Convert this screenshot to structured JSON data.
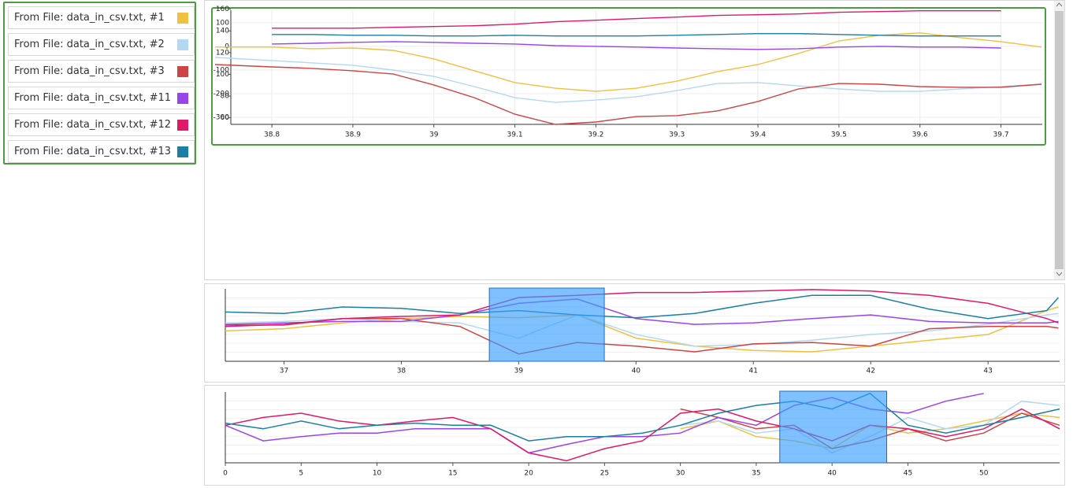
{
  "chart_data": [
    {
      "type": "line",
      "grid": true,
      "x": [
        38.73,
        38.8,
        38.85,
        38.9,
        38.95,
        39,
        39.05,
        39.1,
        39.15,
        39.2,
        39.25,
        39.3,
        39.35,
        39.4,
        39.45,
        39.5,
        39.55,
        39.6,
        39.65,
        39.7,
        39.75
      ],
      "xlim": [
        38.727,
        39.751
      ],
      "xticks": [
        38.8,
        38.9,
        39,
        39.1,
        39.2,
        39.3,
        39.4,
        39.5,
        39.6,
        39.7
      ],
      "ylim": [
        -330,
        153
      ],
      "yticks": [
        -300,
        -200,
        -100,
        0,
        100
      ],
      "y2lim": [
        54,
        159
      ],
      "y2ticks": [
        60,
        80,
        100,
        120,
        140,
        160
      ],
      "series": [
        {
          "name": "From File: data_in_csv.txt, #1",
          "color": "#f0c040",
          "values": [
            -3,
            -3,
            -10,
            -7,
            -17,
            -53,
            -103,
            -153,
            -177,
            -190,
            -177,
            -147,
            -107,
            -77,
            -30,
            23,
            47,
            57,
            37,
            20,
            -3
          ]
        },
        {
          "name": "From File: data_in_csv.txt, #2",
          "color": "#b3d9f2",
          "values": [
            -47,
            -60,
            -70,
            -80,
            -100,
            -127,
            -170,
            -217,
            -237,
            -227,
            -213,
            -187,
            -157,
            -153,
            -167,
            -180,
            -190,
            -190,
            -180,
            -170,
            -160
          ]
        },
        {
          "name": "From File: data_in_csv.txt, #3",
          "color": "#cc4444",
          "values": [
            -77,
            -87,
            -93,
            -103,
            -117,
            -163,
            -217,
            -287,
            -330,
            -320,
            -297,
            -293,
            -273,
            -233,
            -180,
            -157,
            -160,
            -170,
            -173,
            -173,
            -160
          ]
        },
        {
          "name": "From File: data_in_csv.txt, #11",
          "color": "#9b45e8",
          "values": [
            null,
            10,
            13,
            17,
            20,
            17,
            13,
            10,
            3,
            0,
            -3,
            -7,
            -10,
            -13,
            -10,
            -3,
            0,
            -3,
            -3,
            -7,
            null
          ]
        },
        {
          "name": "From File: data_in_csv.txt, #12",
          "color": "#e0186a",
          "axis": "y2",
          "values": [
            null,
            142.5,
            142.5,
            142.5,
            143.3,
            144,
            144.7,
            146.2,
            148.4,
            149.8,
            151.3,
            152.7,
            154.2,
            154.9,
            155.6,
            157.1,
            157.8,
            158.5,
            158.5,
            158.5,
            null
          ]
        },
        {
          "name": "From File: data_in_csv.txt, #13",
          "color": "#1a7fa5",
          "axis": "y2",
          "values": [
            null,
            136.7,
            136.7,
            136,
            136,
            135.3,
            135.3,
            136,
            135.3,
            135.3,
            135.3,
            136,
            136.7,
            137.5,
            137.5,
            136.7,
            136,
            135.3,
            135.3,
            135.3,
            null
          ]
        }
      ]
    },
    {
      "type": "line",
      "selection": [
        38.75,
        39.73
      ],
      "selection_color": "#3aa0ff",
      "x": [
        36.5,
        37,
        37.5,
        38,
        38.5,
        39,
        39.5,
        40,
        40.5,
        41,
        41.5,
        42,
        42.5,
        43,
        43.5,
        43.6
      ],
      "xlim": [
        36.5,
        43.61
      ],
      "xticks": [
        37,
        38,
        39,
        40,
        41,
        42,
        43
      ],
      "ylim": [
        0,
        100
      ],
      "series": [
        {
          "color": "#f0c040",
          "values": [
            42,
            45,
            53,
            59,
            62,
            60,
            64,
            32,
            21,
            15,
            13,
            21,
            29,
            37,
            70,
            75
          ]
        },
        {
          "color": "#b3d9f2",
          "values": [
            53,
            55,
            59,
            55,
            53,
            32,
            64,
            37,
            21,
            23,
            29,
            37,
            42,
            51,
            64,
            66
          ]
        },
        {
          "color": "#cc4444",
          "values": [
            50,
            50,
            59,
            59,
            48,
            10,
            26,
            21,
            13,
            24,
            26,
            21,
            45,
            48,
            48,
            46
          ]
        },
        {
          "color": "#9b45e8",
          "values": [
            51,
            53,
            55,
            55,
            64,
            80,
            86,
            59,
            51,
            53,
            59,
            64,
            55,
            53,
            53,
            55
          ]
        },
        {
          "color": "#e0186a",
          "values": [
            48,
            51,
            59,
            62,
            64,
            88,
            91,
            95,
            95,
            97,
            99,
            97,
            91,
            80,
            59,
            53
          ]
        },
        {
          "color": "#1a7fa5",
          "values": [
            68,
            66,
            75,
            73,
            66,
            70,
            64,
            60,
            66,
            80,
            91,
            91,
            72,
            59,
            70,
            88
          ]
        }
      ]
    },
    {
      "type": "line",
      "selection": [
        36.55,
        43.6
      ],
      "selection_color": "#3aa0ff",
      "x": [
        0,
        2.5,
        5,
        7.5,
        10,
        12.5,
        15,
        17.5,
        20,
        22.5,
        25,
        27.5,
        30,
        32.5,
        35,
        37.5,
        40,
        42.5,
        45,
        47.5,
        50,
        52.5,
        55
      ],
      "xlim": [
        0,
        55
      ],
      "xticks": [
        0,
        5,
        10,
        15,
        20,
        25,
        30,
        35,
        40,
        45,
        50
      ],
      "ylim": [
        0,
        100
      ],
      "series": [
        {
          "color": "#f0c040",
          "values": [
            null,
            null,
            null,
            null,
            null,
            null,
            null,
            null,
            null,
            null,
            null,
            null,
            48,
            59,
            37,
            31,
            20,
            53,
            42,
            48,
            59,
            70,
            64
          ]
        },
        {
          "color": "#b3d9f2",
          "values": [
            null,
            null,
            null,
            null,
            null,
            null,
            null,
            null,
            null,
            null,
            null,
            null,
            53,
            59,
            42,
            48,
            14,
            37,
            64,
            48,
            53,
            87,
            81
          ]
        },
        {
          "color": "#cc4444",
          "values": [
            null,
            null,
            null,
            null,
            null,
            null,
            null,
            null,
            null,
            null,
            null,
            null,
            76,
            64,
            48,
            53,
            20,
            31,
            48,
            31,
            42,
            70,
            53
          ]
        },
        {
          "color": "#9b45e8",
          "values": [
            53,
            31,
            37,
            42,
            42,
            48,
            48,
            48,
            14,
            26,
            37,
            37,
            42,
            64,
            53,
            81,
            92,
            76,
            70,
            87,
            98,
            null,
            null
          ]
        },
        {
          "color": "#e0186a",
          "values": [
            53,
            64,
            70,
            59,
            53,
            59,
            64,
            48,
            14,
            3,
            20,
            31,
            70,
            76,
            59,
            48,
            31,
            53,
            48,
            37,
            48,
            76,
            48
          ]
        },
        {
          "color": "#1a7fa5",
          "values": [
            56,
            48,
            59,
            48,
            53,
            56,
            53,
            53,
            31,
            37,
            37,
            42,
            53,
            70,
            81,
            87,
            76,
            98,
            53,
            42,
            53,
            64,
            76
          ]
        }
      ]
    }
  ]
}
